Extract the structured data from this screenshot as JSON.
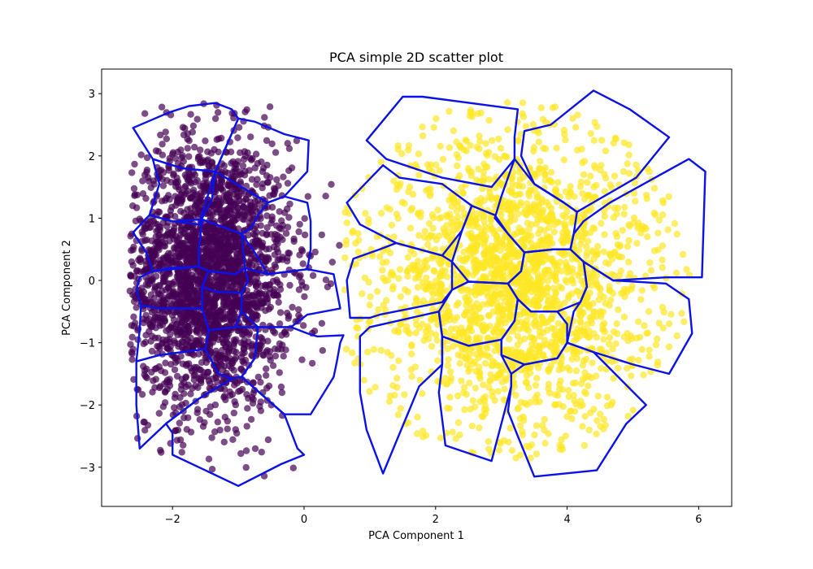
{
  "chart_data": {
    "type": "scatter",
    "title": "PCA simple 2D scatter plot",
    "xlabel": "PCA Component 1",
    "ylabel": "PCA Component 2",
    "xlim": [
      -3.05,
      6.5
    ],
    "ylim": [
      -3.6,
      3.38
    ],
    "xticks": [
      -2,
      0,
      2,
      4,
      6
    ],
    "yticks": [
      -3,
      -2,
      -1,
      0,
      1,
      2,
      3
    ],
    "grid": false,
    "legend": "none",
    "series": [
      {
        "color": "#440154",
        "alpha": 0.7,
        "distribution": {
          "type": "gaussian",
          "center": [
            -1.45,
            0.1
          ],
          "std": [
            0.62,
            1.08
          ],
          "n": 2500,
          "extent_x": [
            -2.65,
            0.55
          ],
          "extent_y": [
            -3.3,
            2.85
          ]
        }
      },
      {
        "color": "#fde725",
        "alpha": 0.7,
        "distribution": {
          "type": "annulus",
          "center": [
            3.15,
            0.0
          ],
          "n": 2200,
          "core_std": [
            0.55,
            0.7
          ],
          "ring_radius": [
            1.0,
            2.6
          ],
          "extent_x": [
            0.6,
            6.05
          ],
          "extent_y": [
            -3.15,
            3.05
          ]
        }
      }
    ],
    "region_outline_color": "#0b12e8",
    "cluster_regions": [
      [
        [
          -2.6,
          2.45
        ],
        [
          -2.05,
          2.7
        ],
        [
          -1.75,
          2.8
        ],
        [
          -1.35,
          2.85
        ],
        [
          -1.1,
          2.75
        ],
        [
          -1.0,
          2.6
        ],
        [
          -1.35,
          1.75
        ],
        [
          -1.85,
          1.8
        ],
        [
          -2.3,
          1.95
        ]
      ],
      [
        [
          -1.0,
          2.6
        ],
        [
          -0.75,
          2.55
        ],
        [
          -0.3,
          2.35
        ],
        [
          0.07,
          2.25
        ],
        [
          0.05,
          1.75
        ],
        [
          -0.3,
          1.35
        ],
        [
          -0.55,
          1.25
        ],
        [
          -1.35,
          1.75
        ]
      ],
      [
        [
          -2.3,
          1.95
        ],
        [
          -1.85,
          1.8
        ],
        [
          -1.35,
          1.75
        ],
        [
          -1.4,
          1.3
        ],
        [
          -1.6,
          0.9
        ],
        [
          -2.0,
          0.95
        ],
        [
          -2.35,
          1.05
        ],
        [
          -2.2,
          1.55
        ]
      ],
      [
        [
          -1.35,
          1.75
        ],
        [
          -0.55,
          1.25
        ],
        [
          -0.7,
          1.05
        ],
        [
          -0.8,
          0.85
        ],
        [
          -0.95,
          0.75
        ],
        [
          -1.55,
          0.98
        ],
        [
          -1.6,
          0.9
        ]
      ],
      [
        [
          -0.55,
          1.25
        ],
        [
          -0.3,
          1.35
        ],
        [
          0.05,
          1.25
        ],
        [
          0.1,
          0.95
        ],
        [
          0.1,
          0.5
        ],
        [
          0.05,
          0.18
        ],
        [
          -0.55,
          0.1
        ],
        [
          -0.75,
          0.45
        ],
        [
          -0.95,
          0.75
        ],
        [
          -0.8,
          0.85
        ],
        [
          -0.7,
          1.05
        ]
      ],
      [
        [
          -2.35,
          1.05
        ],
        [
          -2.0,
          0.95
        ],
        [
          -1.55,
          0.98
        ],
        [
          -1.6,
          0.5
        ],
        [
          -1.6,
          0.22
        ],
        [
          -2.05,
          0.2
        ],
        [
          -2.3,
          0.15
        ],
        [
          -2.4,
          0.45
        ],
        [
          -2.6,
          0.77
        ]
      ],
      [
        [
          -1.55,
          0.98
        ],
        [
          -0.95,
          0.75
        ],
        [
          -0.9,
          0.2
        ],
        [
          -1.05,
          0.1
        ],
        [
          -1.45,
          0.15
        ],
        [
          -1.6,
          0.22
        ],
        [
          -1.6,
          0.5
        ]
      ],
      [
        [
          -2.3,
          0.15
        ],
        [
          -1.6,
          0.22
        ],
        [
          -1.45,
          0.15
        ],
        [
          -1.55,
          -0.1
        ],
        [
          -1.55,
          -0.45
        ],
        [
          -2.2,
          -0.45
        ],
        [
          -2.48,
          -0.4
        ],
        [
          -2.55,
          -0.15
        ],
        [
          -2.5,
          0.05
        ]
      ],
      [
        [
          -1.45,
          0.15
        ],
        [
          -1.05,
          0.1
        ],
        [
          -0.9,
          0.2
        ],
        [
          -0.85,
          0.0
        ],
        [
          -0.95,
          -0.2
        ],
        [
          -1.35,
          -0.18
        ],
        [
          -1.55,
          -0.1
        ]
      ],
      [
        [
          -0.9,
          0.2
        ],
        [
          -0.55,
          0.1
        ],
        [
          0.05,
          0.18
        ],
        [
          0.45,
          0.1
        ],
        [
          0.55,
          -0.45
        ],
        [
          0.05,
          -0.55
        ],
        [
          -0.2,
          -0.75
        ],
        [
          -0.7,
          -0.75
        ],
        [
          -0.95,
          -0.5
        ],
        [
          -0.95,
          -0.2
        ],
        [
          -0.85,
          0.0
        ]
      ],
      [
        [
          -2.48,
          -0.4
        ],
        [
          -2.2,
          -0.45
        ],
        [
          -1.55,
          -0.45
        ],
        [
          -1.45,
          -0.8
        ],
        [
          -1.5,
          -1.1
        ],
        [
          -2.2,
          -1.2
        ],
        [
          -2.55,
          -1.3
        ],
        [
          -2.5,
          -0.8
        ]
      ],
      [
        [
          -1.55,
          -0.45
        ],
        [
          -1.55,
          -0.1
        ],
        [
          -1.35,
          -0.18
        ],
        [
          -0.95,
          -0.2
        ],
        [
          -0.95,
          -0.5
        ],
        [
          -1.05,
          -0.75
        ],
        [
          -1.45,
          -0.8
        ]
      ],
      [
        [
          -1.45,
          -0.8
        ],
        [
          -1.05,
          -0.75
        ],
        [
          -0.7,
          -0.75
        ],
        [
          -0.75,
          -1.25
        ],
        [
          -0.95,
          -1.55
        ],
        [
          -1.0,
          -1.55
        ],
        [
          -1.1,
          -1.58
        ],
        [
          -1.3,
          -1.5
        ],
        [
          -1.5,
          -1.1
        ]
      ],
      [
        [
          -0.7,
          -0.75
        ],
        [
          -0.2,
          -0.75
        ],
        [
          0.05,
          -0.85
        ],
        [
          0.2,
          -0.9
        ],
        [
          0.6,
          -0.88
        ],
        [
          0.55,
          -1.0
        ],
        [
          0.5,
          -1.3
        ],
        [
          0.45,
          -1.55
        ],
        [
          0.1,
          -2.15
        ],
        [
          -0.3,
          -2.15
        ],
        [
          -0.95,
          -1.55
        ],
        [
          -0.75,
          -1.25
        ]
      ],
      [
        [
          -2.55,
          -1.3
        ],
        [
          -2.2,
          -1.2
        ],
        [
          -1.5,
          -1.1
        ],
        [
          -1.3,
          -1.5
        ],
        [
          -1.1,
          -1.58
        ],
        [
          -1.6,
          -1.9
        ],
        [
          -2.1,
          -2.3
        ],
        [
          -2.5,
          -2.7
        ],
        [
          -2.55,
          -2.0
        ]
      ],
      [
        [
          -1.1,
          -1.58
        ],
        [
          -1.0,
          -1.55
        ],
        [
          -0.95,
          -1.55
        ],
        [
          -0.3,
          -2.15
        ],
        [
          -0.1,
          -2.7
        ],
        [
          0.0,
          -2.8
        ],
        [
          -0.35,
          -2.95
        ],
        [
          -1.0,
          -3.3
        ],
        [
          -1.6,
          -3.0
        ],
        [
          -2.0,
          -2.8
        ],
        [
          -2.0,
          -2.45
        ],
        [
          -2.1,
          -2.3
        ],
        [
          -1.6,
          -1.9
        ]
      ],
      [
        [
          0.95,
          2.25
        ],
        [
          1.5,
          2.95
        ],
        [
          1.8,
          2.95
        ],
        [
          3.25,
          2.75
        ],
        [
          3.2,
          2.3
        ],
        [
          3.2,
          1.95
        ],
        [
          2.85,
          1.5
        ],
        [
          2.1,
          1.65
        ],
        [
          1.25,
          1.95
        ]
      ],
      [
        [
          3.35,
          2.4
        ],
        [
          3.75,
          2.5
        ],
        [
          4.4,
          3.05
        ],
        [
          4.95,
          2.75
        ],
        [
          5.55,
          2.3
        ],
        [
          5.05,
          1.65
        ],
        [
          4.15,
          1.1
        ],
        [
          3.95,
          1.25
        ],
        [
          3.5,
          1.55
        ],
        [
          3.3,
          2.0
        ]
      ],
      [
        [
          0.65,
          1.25
        ],
        [
          1.2,
          1.85
        ],
        [
          1.45,
          1.65
        ],
        [
          2.1,
          1.55
        ],
        [
          2.55,
          1.2
        ],
        [
          2.4,
          0.8
        ],
        [
          2.1,
          0.4
        ],
        [
          1.4,
          0.6
        ],
        [
          0.85,
          0.9
        ]
      ],
      [
        [
          4.25,
          0.95
        ],
        [
          4.65,
          1.25
        ],
        [
          5.85,
          1.95
        ],
        [
          6.1,
          1.75
        ],
        [
          6.05,
          0.05
        ],
        [
          5.5,
          0.05
        ],
        [
          4.7,
          0.0
        ],
        [
          4.25,
          0.3
        ],
        [
          4.05,
          0.5
        ],
        [
          4.1,
          0.75
        ]
      ],
      [
        [
          3.2,
          1.95
        ],
        [
          3.5,
          1.55
        ],
        [
          3.95,
          1.25
        ],
        [
          4.15,
          1.1
        ],
        [
          4.1,
          0.75
        ],
        [
          4.05,
          0.5
        ],
        [
          3.8,
          0.5
        ],
        [
          3.35,
          0.45
        ],
        [
          3.1,
          0.75
        ],
        [
          2.9,
          1.0
        ],
        [
          3.0,
          1.35
        ]
      ],
      [
        [
          2.55,
          1.2
        ],
        [
          2.9,
          1.05
        ],
        [
          3.1,
          0.75
        ],
        [
          3.35,
          0.45
        ],
        [
          3.3,
          0.15
        ],
        [
          3.1,
          -0.05
        ],
        [
          2.5,
          -0.02
        ],
        [
          2.25,
          0.3
        ],
        [
          2.4,
          0.8
        ]
      ],
      [
        [
          1.0,
          -0.6
        ],
        [
          1.15,
          -0.55
        ],
        [
          2.1,
          -0.35
        ],
        [
          2.25,
          -0.15
        ],
        [
          2.25,
          0.3
        ],
        [
          2.1,
          0.4
        ],
        [
          1.4,
          0.6
        ],
        [
          1.15,
          0.5
        ],
        [
          0.75,
          0.35
        ],
        [
          0.65,
          0.0
        ],
        [
          0.7,
          -0.6
        ]
      ],
      [
        [
          3.35,
          0.45
        ],
        [
          3.8,
          0.5
        ],
        [
          4.05,
          0.5
        ],
        [
          4.25,
          0.3
        ],
        [
          4.3,
          -0.1
        ],
        [
          4.2,
          -0.35
        ],
        [
          3.85,
          -0.5
        ],
        [
          3.45,
          -0.5
        ],
        [
          3.25,
          -0.3
        ],
        [
          3.1,
          -0.05
        ],
        [
          3.3,
          0.15
        ]
      ],
      [
        [
          4.25,
          0.3
        ],
        [
          4.7,
          0.0
        ],
        [
          5.5,
          -0.05
        ],
        [
          5.85,
          -0.3
        ],
        [
          5.9,
          -0.85
        ],
        [
          5.55,
          -1.5
        ],
        [
          5.0,
          -1.35
        ],
        [
          4.4,
          -1.15
        ],
        [
          4.0,
          -1.0
        ],
        [
          4.1,
          -0.5
        ],
        [
          4.2,
          -0.35
        ],
        [
          4.3,
          -0.1
        ]
      ],
      [
        [
          2.25,
          -0.15
        ],
        [
          2.5,
          -0.02
        ],
        [
          3.1,
          -0.05
        ],
        [
          3.25,
          -0.3
        ],
        [
          3.2,
          -0.65
        ],
        [
          3.0,
          -0.95
        ],
        [
          2.5,
          -1.05
        ],
        [
          2.1,
          -0.9
        ],
        [
          2.05,
          -0.5
        ]
      ],
      [
        [
          3.25,
          -0.3
        ],
        [
          3.45,
          -0.5
        ],
        [
          3.85,
          -0.5
        ],
        [
          4.0,
          -0.7
        ],
        [
          4.0,
          -1.0
        ],
        [
          3.85,
          -1.25
        ],
        [
          3.35,
          -1.35
        ],
        [
          3.0,
          -1.2
        ],
        [
          3.0,
          -0.95
        ],
        [
          3.2,
          -0.65
        ]
      ],
      [
        [
          0.85,
          -0.9
        ],
        [
          1.0,
          -0.75
        ],
        [
          2.05,
          -0.5
        ],
        [
          2.1,
          -0.9
        ],
        [
          2.1,
          -1.35
        ],
        [
          1.75,
          -1.7
        ],
        [
          1.2,
          -3.1
        ],
        [
          0.95,
          -2.4
        ],
        [
          0.85,
          -1.8
        ]
      ],
      [
        [
          2.1,
          -0.9
        ],
        [
          2.5,
          -1.05
        ],
        [
          3.0,
          -0.95
        ],
        [
          3.0,
          -1.2
        ],
        [
          3.15,
          -1.5
        ],
        [
          3.15,
          -1.7
        ],
        [
          3.0,
          -2.3
        ],
        [
          2.85,
          -2.9
        ],
        [
          2.15,
          -2.65
        ],
        [
          2.05,
          -1.8
        ],
        [
          2.1,
          -1.35
        ]
      ],
      [
        [
          3.35,
          -1.35
        ],
        [
          3.85,
          -1.25
        ],
        [
          4.0,
          -1.0
        ],
        [
          4.4,
          -1.15
        ],
        [
          5.2,
          -2.0
        ],
        [
          4.9,
          -2.3
        ],
        [
          4.45,
          -3.05
        ],
        [
          3.5,
          -3.15
        ],
        [
          3.25,
          -2.5
        ],
        [
          3.1,
          -2.1
        ],
        [
          3.15,
          -1.7
        ],
        [
          3.15,
          -1.5
        ]
      ]
    ]
  }
}
